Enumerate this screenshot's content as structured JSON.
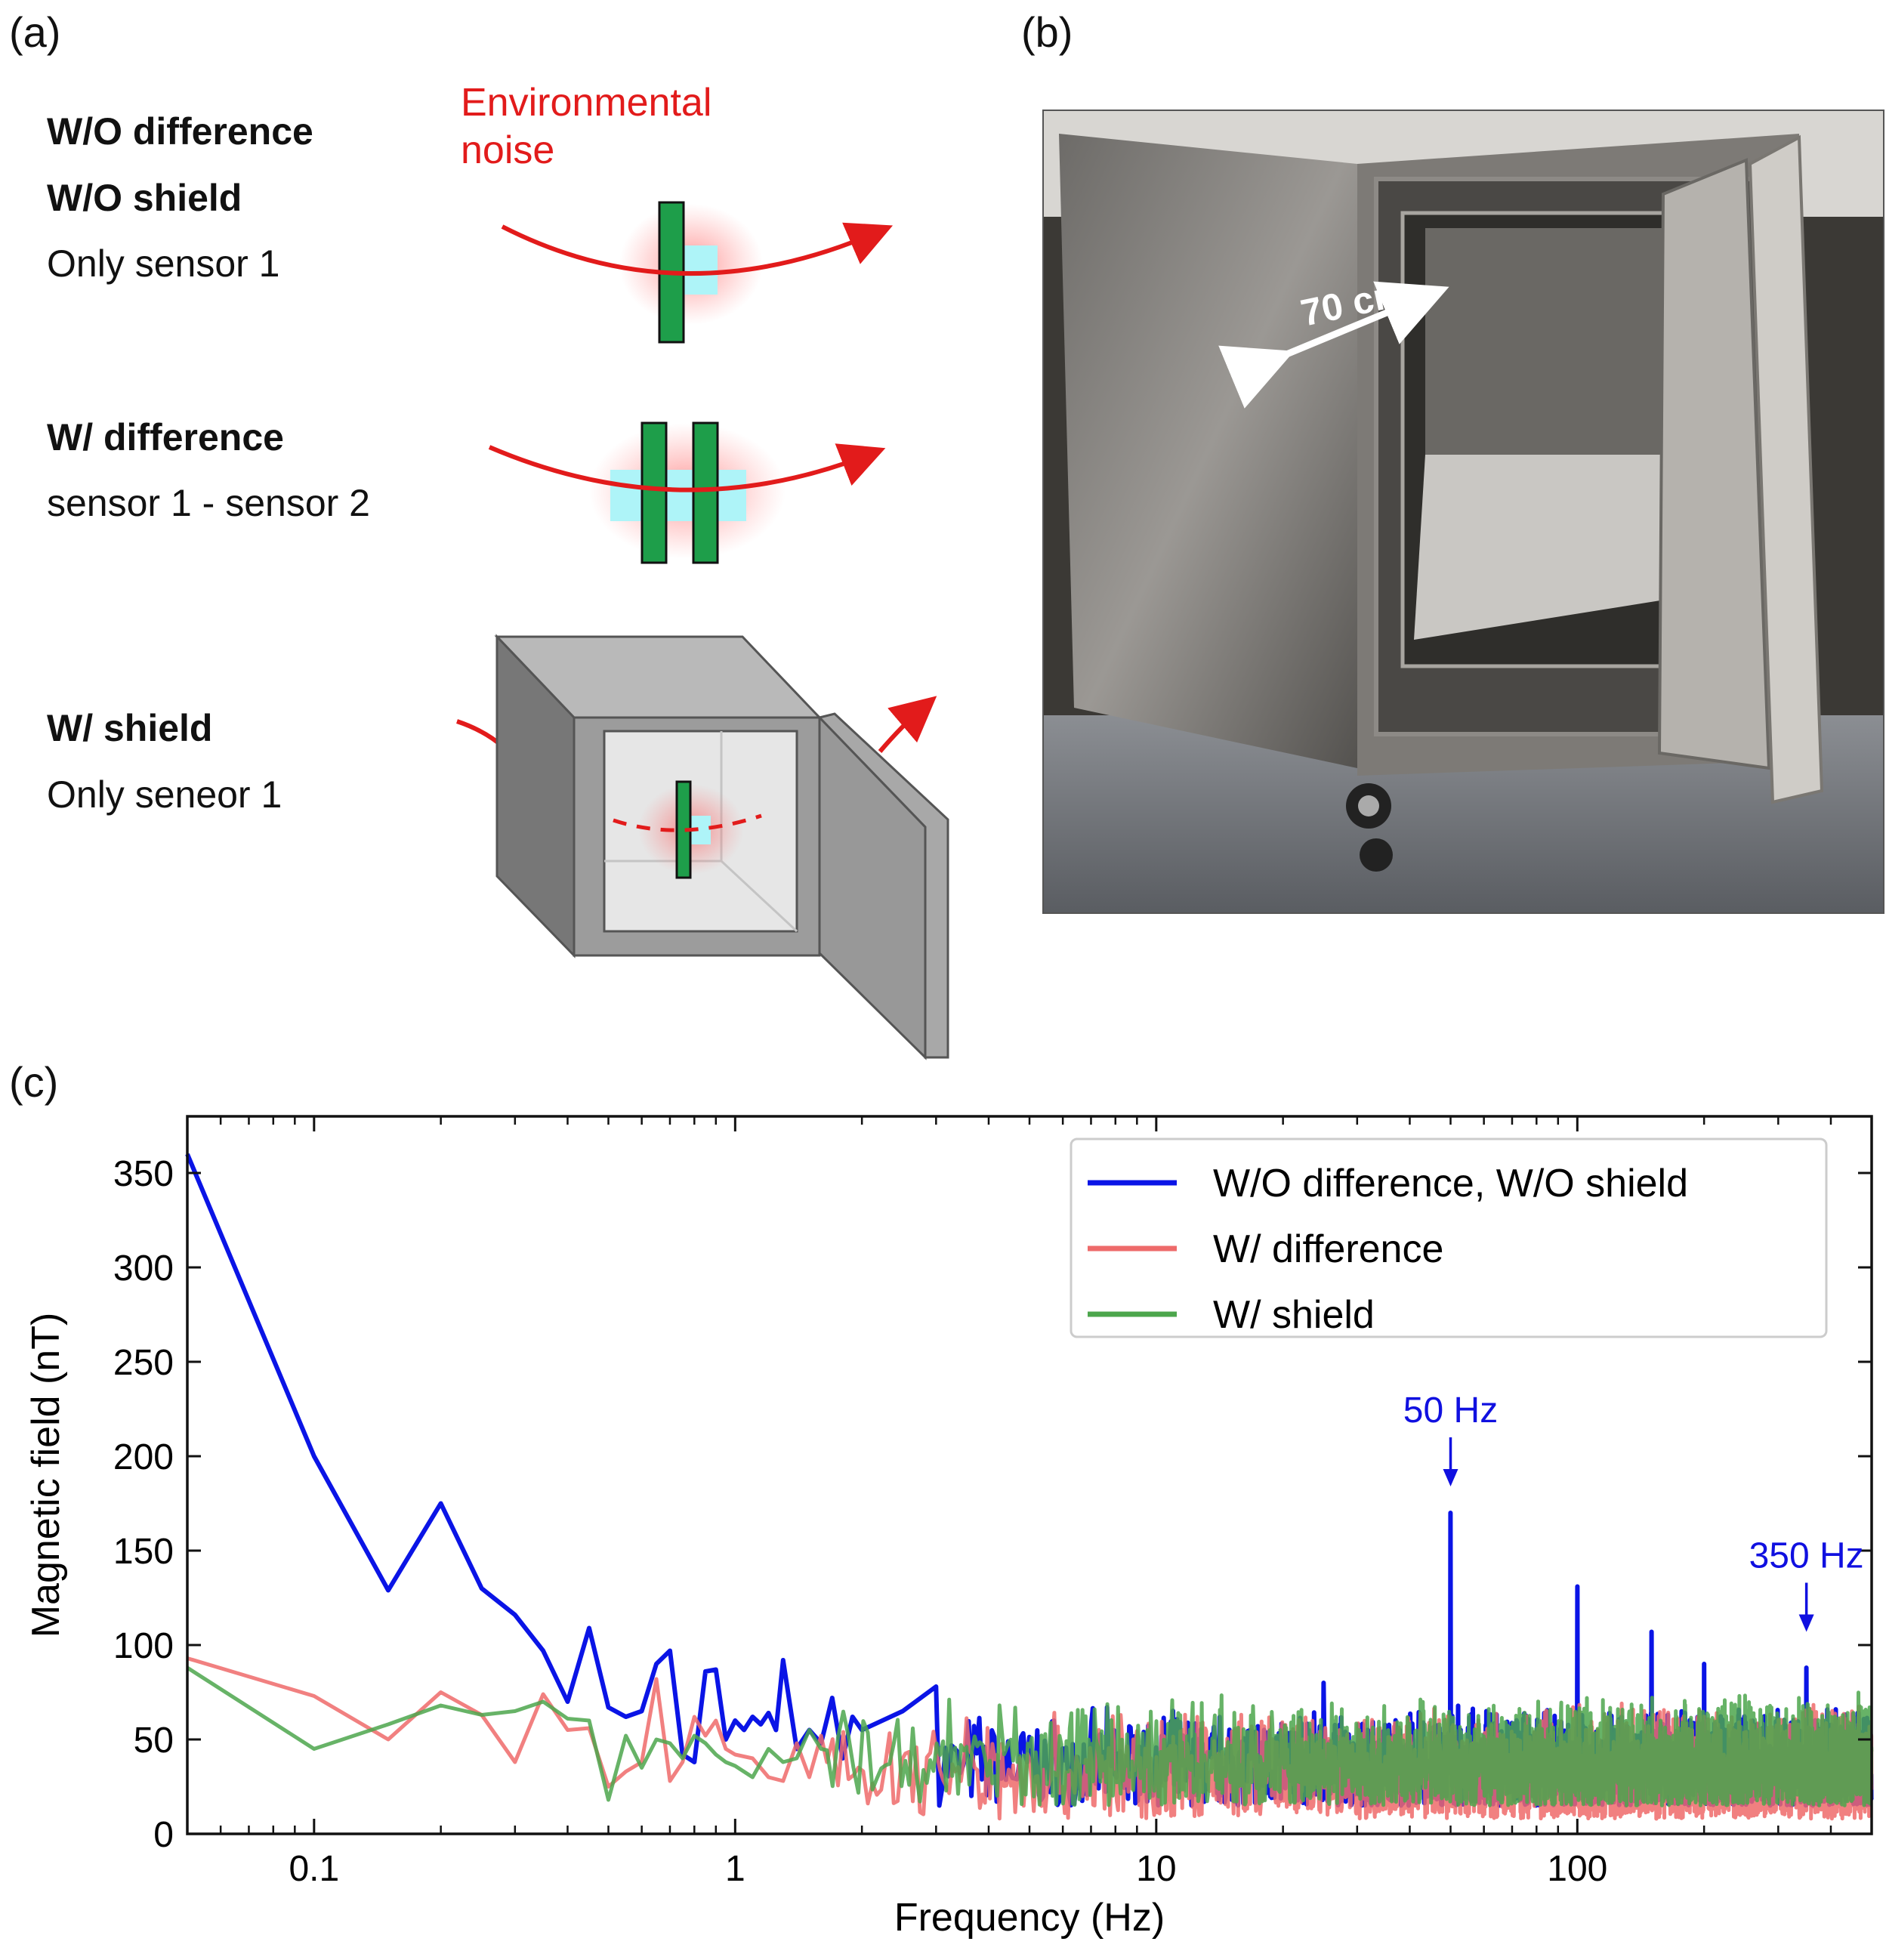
{
  "panels": {
    "a": "(a)",
    "b": "(b)",
    "c": "(c)"
  },
  "schematic": {
    "env_noise_line1": "Environmental",
    "env_noise_line2": "noise",
    "case1": {
      "line1": "W/O difference",
      "line2": "W/O shield",
      "line3": "Only sensor 1"
    },
    "case2": {
      "line1": "W/ difference",
      "line2": "sensor 1 - sensor 2"
    },
    "case3": {
      "line1": "W/ shield",
      "line2": "Only seneor 1"
    }
  },
  "photo": {
    "dimension_label": "70 cm"
  },
  "colors": {
    "noise_red": "#e21b1b",
    "sensor_green": "#1e9e4a",
    "sensor_cyan": "#aef4f8",
    "blue_series": "#0a14e6",
    "red_series": "#ee6a6a",
    "green_series": "#4ca64c",
    "annotation_blue": "#1010e0"
  },
  "chart_data": {
    "type": "line",
    "xlabel": "Frequency (Hz)",
    "ylabel": "Magnetic field (nT)",
    "xscale": "log",
    "xlim": [
      0.05,
      500
    ],
    "ylim": [
      0,
      380
    ],
    "xticks": [
      0.1,
      1,
      10,
      100
    ],
    "xtick_labels": [
      "0.1",
      "1",
      "10",
      "100"
    ],
    "yticks": [
      0,
      50,
      100,
      150,
      200,
      250,
      300,
      350
    ],
    "ytick_labels": [
      "0",
      "50",
      "100",
      "150",
      "200",
      "250",
      "300",
      "350"
    ],
    "legend_position": "top-right",
    "series": [
      {
        "name": "W/O difference, W/O shield",
        "color": "#0a14e6",
        "x": [
          0.05,
          0.1,
          0.15,
          0.2,
          0.25,
          0.3,
          0.35,
          0.4,
          0.45,
          0.5,
          0.55,
          0.6,
          0.65,
          0.7,
          0.75,
          0.8,
          0.85,
          0.9,
          0.95,
          1.0,
          1.05,
          1.1,
          1.15,
          1.2,
          1.25,
          1.3,
          1.4,
          1.5,
          1.6,
          1.7,
          1.8,
          1.9,
          2.0,
          2.5,
          3.0
        ],
        "y": [
          360,
          200,
          129,
          175,
          130,
          116,
          97,
          70,
          109,
          67,
          62,
          65,
          90,
          97,
          42,
          38,
          86,
          87,
          50,
          60,
          55,
          62,
          58,
          64,
          55,
          92,
          45,
          55,
          48,
          72,
          40,
          62,
          55,
          65,
          55
        ],
        "peaks": [
          {
            "x": 50,
            "y": 170
          },
          {
            "x": 100,
            "y": 131
          },
          {
            "x": 150,
            "y": 107
          },
          {
            "x": 200,
            "y": 90
          },
          {
            "x": 350,
            "y": 88
          },
          {
            "x": 25,
            "y": 80
          },
          {
            "x": 3.0,
            "y": 78
          }
        ],
        "noise_floor": [
          15,
          68
        ]
      },
      {
        "name": "W/ difference",
        "color": "#ee6a6a",
        "x": [
          0.05,
          0.1,
          0.15,
          0.2,
          0.25,
          0.3,
          0.35,
          0.4,
          0.45,
          0.5,
          0.55,
          0.6,
          0.65,
          0.7,
          0.75,
          0.8,
          0.85,
          0.9,
          0.95,
          1.0,
          1.1,
          1.2,
          1.3,
          1.4,
          1.5,
          1.6
        ],
        "y": [
          93,
          73,
          50,
          75,
          63,
          38,
          74,
          55,
          56,
          25,
          33,
          38,
          82,
          28,
          38,
          62,
          52,
          60,
          45,
          42,
          40,
          30,
          28,
          48,
          30,
          52
        ],
        "noise_floor": [
          8,
          70
        ]
      },
      {
        "name": "W/ shield",
        "color": "#4ca64c",
        "x": [
          0.05,
          0.1,
          0.15,
          0.2,
          0.25,
          0.3,
          0.35,
          0.4,
          0.45,
          0.5,
          0.55,
          0.6,
          0.65,
          0.7,
          0.75,
          0.8,
          0.85,
          0.9,
          0.95,
          1.0,
          1.1,
          1.2,
          1.3,
          1.4,
          1.5,
          1.6
        ],
        "y": [
          88,
          45,
          58,
          68,
          63,
          65,
          70,
          61,
          60,
          18,
          52,
          35,
          50,
          48,
          40,
          52,
          48,
          42,
          38,
          36,
          30,
          45,
          38,
          40,
          55,
          45
        ],
        "noise_floor": [
          15,
          75
        ]
      }
    ],
    "annotations": [
      {
        "text": "50 Hz",
        "x": 50,
        "y": 218
      },
      {
        "text": "350 Hz",
        "x": 350,
        "y": 141
      }
    ]
  }
}
